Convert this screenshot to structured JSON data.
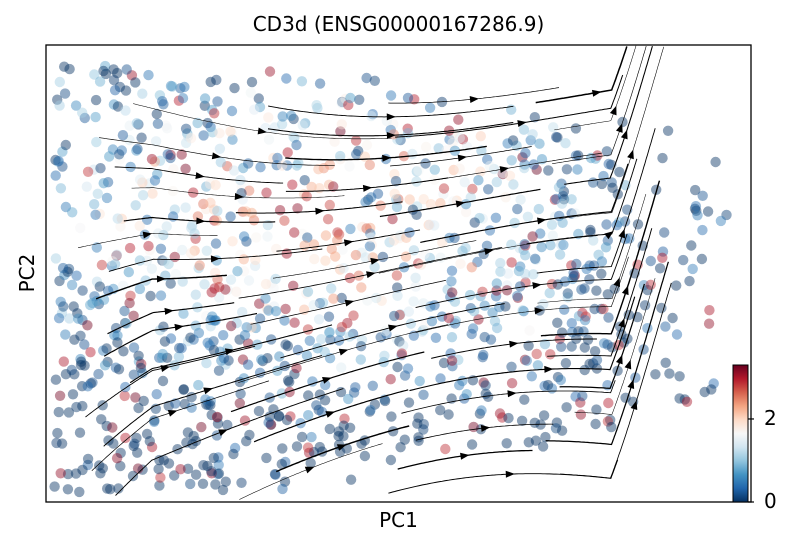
{
  "chart_data": {
    "type": "scatter",
    "title": "CD3d (ENSG00000167286.9)",
    "xlabel": "PC1",
    "ylabel": "PC2",
    "x_ticks": [],
    "y_ticks": [],
    "grid": false,
    "overlay": "velocity streamlines with arrowheads",
    "colorbar": {
      "colormap": "RdBu_r",
      "range": [
        0,
        3.3
      ],
      "ticks": [
        {
          "value": 0,
          "label": "0"
        },
        {
          "value": 2,
          "label": "2"
        }
      ],
      "colors": [
        "#053061",
        "#2166ac",
        "#4393c3",
        "#92c5de",
        "#d1e5f0",
        "#f7f7f7",
        "#fddbc7",
        "#f4a582",
        "#d6604d",
        "#b2182b",
        "#67001f"
      ]
    }
  }
}
